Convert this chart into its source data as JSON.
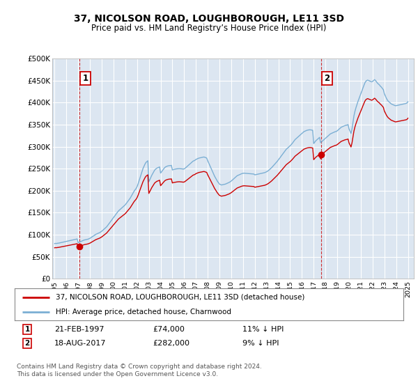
{
  "title": "37, NICOLSON ROAD, LOUGHBOROUGH, LE11 3SD",
  "subtitle": "Price paid vs. HM Land Registry’s House Price Index (HPI)",
  "ylabel_ticks": [
    "£0",
    "£50K",
    "£100K",
    "£150K",
    "£200K",
    "£250K",
    "£300K",
    "£350K",
    "£400K",
    "£450K",
    "£500K"
  ],
  "ylim": [
    0,
    500000
  ],
  "xlim_start": 1994.8,
  "xlim_end": 2025.5,
  "sale1_year": 1997.13,
  "sale1_price": 74000,
  "sale2_year": 2017.63,
  "sale2_price": 282000,
  "sale1_date": "21-FEB-1997",
  "sale1_amount": "£74,000",
  "sale1_hpi": "11% ↓ HPI",
  "sale2_date": "18-AUG-2017",
  "sale2_amount": "£282,000",
  "sale2_hpi": "9% ↓ HPI",
  "legend1": "37, NICOLSON ROAD, LOUGHBOROUGH, LE11 3SD (detached house)",
  "legend2": "HPI: Average price, detached house, Charnwood",
  "footer1": "Contains HM Land Registry data © Crown copyright and database right 2024.",
  "footer2": "This data is licensed under the Open Government Licence v3.0.",
  "bg_color": "#dce6f1",
  "red_color": "#cc0000",
  "blue_color": "#7bafd4",
  "grid_color": "#ffffff",
  "hpi_x": [
    1995.0,
    1995.083,
    1995.167,
    1995.25,
    1995.333,
    1995.417,
    1995.5,
    1995.583,
    1995.667,
    1995.75,
    1995.833,
    1995.917,
    1996.0,
    1996.083,
    1996.167,
    1996.25,
    1996.333,
    1996.417,
    1996.5,
    1996.583,
    1996.667,
    1996.75,
    1996.833,
    1996.917,
    1997.0,
    1997.083,
    1997.167,
    1997.25,
    1997.333,
    1997.417,
    1997.5,
    1997.583,
    1997.667,
    1997.75,
    1997.833,
    1997.917,
    1998.0,
    1998.083,
    1998.167,
    1998.25,
    1998.333,
    1998.417,
    1998.5,
    1998.583,
    1998.667,
    1998.75,
    1998.833,
    1998.917,
    1999.0,
    1999.083,
    1999.167,
    1999.25,
    1999.333,
    1999.417,
    1999.5,
    1999.583,
    1999.667,
    1999.75,
    1999.833,
    1999.917,
    2000.0,
    2000.083,
    2000.167,
    2000.25,
    2000.333,
    2000.417,
    2000.5,
    2000.583,
    2000.667,
    2000.75,
    2000.833,
    2000.917,
    2001.0,
    2001.083,
    2001.167,
    2001.25,
    2001.333,
    2001.417,
    2001.5,
    2001.583,
    2001.667,
    2001.75,
    2001.833,
    2001.917,
    2002.0,
    2002.083,
    2002.167,
    2002.25,
    2002.333,
    2002.417,
    2002.5,
    2002.583,
    2002.667,
    2002.75,
    2002.833,
    2002.917,
    2003.0,
    2003.083,
    2003.167,
    2003.25,
    2003.333,
    2003.417,
    2003.5,
    2003.583,
    2003.667,
    2003.75,
    2003.833,
    2003.917,
    2004.0,
    2004.083,
    2004.167,
    2004.25,
    2004.333,
    2004.417,
    2004.5,
    2004.583,
    2004.667,
    2004.75,
    2004.833,
    2004.917,
    2005.0,
    2005.083,
    2005.167,
    2005.25,
    2005.333,
    2005.417,
    2005.5,
    2005.583,
    2005.667,
    2005.75,
    2005.833,
    2005.917,
    2006.0,
    2006.083,
    2006.167,
    2006.25,
    2006.333,
    2006.417,
    2006.5,
    2006.583,
    2006.667,
    2006.75,
    2006.833,
    2006.917,
    2007.0,
    2007.083,
    2007.167,
    2007.25,
    2007.333,
    2007.417,
    2007.5,
    2007.583,
    2007.667,
    2007.75,
    2007.833,
    2007.917,
    2008.0,
    2008.083,
    2008.167,
    2008.25,
    2008.333,
    2008.417,
    2008.5,
    2008.583,
    2008.667,
    2008.75,
    2008.833,
    2008.917,
    2009.0,
    2009.083,
    2009.167,
    2009.25,
    2009.333,
    2009.417,
    2009.5,
    2009.583,
    2009.667,
    2009.75,
    2009.833,
    2009.917,
    2010.0,
    2010.083,
    2010.167,
    2010.25,
    2010.333,
    2010.417,
    2010.5,
    2010.583,
    2010.667,
    2010.75,
    2010.833,
    2010.917,
    2011.0,
    2011.083,
    2011.167,
    2011.25,
    2011.333,
    2011.417,
    2011.5,
    2011.583,
    2011.667,
    2011.75,
    2011.833,
    2011.917,
    2012.0,
    2012.083,
    2012.167,
    2012.25,
    2012.333,
    2012.417,
    2012.5,
    2012.583,
    2012.667,
    2012.75,
    2012.833,
    2012.917,
    2013.0,
    2013.083,
    2013.167,
    2013.25,
    2013.333,
    2013.417,
    2013.5,
    2013.583,
    2013.667,
    2013.75,
    2013.833,
    2013.917,
    2014.0,
    2014.083,
    2014.167,
    2014.25,
    2014.333,
    2014.417,
    2014.5,
    2014.583,
    2014.667,
    2014.75,
    2014.833,
    2014.917,
    2015.0,
    2015.083,
    2015.167,
    2015.25,
    2015.333,
    2015.417,
    2015.5,
    2015.583,
    2015.667,
    2015.75,
    2015.833,
    2015.917,
    2016.0,
    2016.083,
    2016.167,
    2016.25,
    2016.333,
    2016.417,
    2016.5,
    2016.583,
    2016.667,
    2016.75,
    2016.833,
    2016.917,
    2017.0,
    2017.083,
    2017.167,
    2017.25,
    2017.333,
    2017.417,
    2017.5,
    2017.583,
    2017.667,
    2017.75,
    2017.833,
    2017.917,
    2018.0,
    2018.083,
    2018.167,
    2018.25,
    2018.333,
    2018.417,
    2018.5,
    2018.583,
    2018.667,
    2018.75,
    2018.833,
    2018.917,
    2019.0,
    2019.083,
    2019.167,
    2019.25,
    2019.333,
    2019.417,
    2019.5,
    2019.583,
    2019.667,
    2019.75,
    2019.833,
    2019.917,
    2020.0,
    2020.083,
    2020.167,
    2020.25,
    2020.333,
    2020.417,
    2020.5,
    2020.583,
    2020.667,
    2020.75,
    2020.833,
    2020.917,
    2021.0,
    2021.083,
    2021.167,
    2021.25,
    2021.333,
    2021.417,
    2021.5,
    2021.583,
    2021.667,
    2021.75,
    2021.833,
    2021.917,
    2022.0,
    2022.083,
    2022.167,
    2022.25,
    2022.333,
    2022.417,
    2022.5,
    2022.583,
    2022.667,
    2022.75,
    2022.833,
    2022.917,
    2023.0,
    2023.083,
    2023.167,
    2023.25,
    2023.333,
    2023.417,
    2023.5,
    2023.583,
    2023.667,
    2023.75,
    2023.833,
    2023.917,
    2024.0,
    2024.083,
    2024.167,
    2024.25,
    2024.333,
    2024.417,
    2024.5,
    2024.583,
    2024.667,
    2024.75,
    2024.833,
    2024.917,
    2025.0
  ],
  "hpi_y": [
    80000,
    80500,
    80200,
    80800,
    81000,
    81500,
    82000,
    82500,
    83000,
    83500,
    84000,
    84500,
    85000,
    85500,
    86000,
    86500,
    87000,
    87500,
    88000,
    88500,
    89000,
    89500,
    90000,
    90500,
    82000,
    83000,
    84000,
    85000,
    86000,
    87000,
    88000,
    88500,
    89000,
    89500,
    90000,
    91000,
    92000,
    93500,
    95000,
    96500,
    98000,
    99500,
    101000,
    102000,
    103000,
    104000,
    105000,
    106500,
    108000,
    110000,
    112000,
    114000,
    116000,
    118000,
    121000,
    124000,
    127000,
    130000,
    133000,
    136000,
    139000,
    142000,
    145000,
    148000,
    151000,
    154000,
    156000,
    158000,
    160000,
    162000,
    164000,
    166000,
    168000,
    171000,
    174000,
    177000,
    180000,
    183000,
    187000,
    191000,
    195000,
    199000,
    202000,
    205000,
    209000,
    215000,
    222000,
    229000,
    236000,
    243000,
    250000,
    255000,
    260000,
    264000,
    266000,
    268000,
    220000,
    225000,
    230000,
    235000,
    239000,
    243000,
    247000,
    249000,
    251000,
    252000,
    253000,
    254000,
    240000,
    243000,
    246000,
    249000,
    252000,
    254000,
    255000,
    256000,
    256500,
    257000,
    257000,
    257500,
    247000,
    248000,
    248500,
    249000,
    249500,
    249800,
    250000,
    250200,
    250000,
    249800,
    249500,
    249000,
    249500,
    251000,
    253000,
    255000,
    257000,
    259000,
    261000,
    263000,
    265000,
    267000,
    268000,
    269000,
    271000,
    272000,
    273000,
    274000,
    274500,
    275000,
    275500,
    276000,
    276500,
    276000,
    275000,
    274000,
    268000,
    263000,
    258000,
    253000,
    248000,
    243000,
    238000,
    233000,
    229000,
    225000,
    221000,
    218000,
    215000,
    214000,
    213000,
    213500,
    214000,
    214500,
    215000,
    216000,
    217000,
    218000,
    219000,
    220500,
    222000,
    224000,
    226000,
    228000,
    230000,
    232000,
    234000,
    235000,
    236000,
    237000,
    238000,
    239000,
    239500,
    239800,
    239600,
    239400,
    239200,
    239000,
    238800,
    238600,
    238400,
    238200,
    238000,
    237800,
    236000,
    236500,
    237000,
    237500,
    238000,
    238500,
    239000,
    239500,
    240000,
    240500,
    241000,
    242000,
    243000,
    244500,
    246000,
    248000,
    250000,
    252000,
    254500,
    257000,
    259500,
    262000,
    264500,
    267000,
    270000,
    273000,
    276000,
    279000,
    282000,
    285000,
    288000,
    291000,
    294000,
    296000,
    298000,
    300000,
    302000,
    304500,
    307000,
    310000,
    313000,
    316000,
    318000,
    320000,
    322000,
    324000,
    326000,
    328000,
    330000,
    332000,
    334000,
    335000,
    336000,
    337000,
    337500,
    338000,
    338200,
    338000,
    337500,
    337000,
    307000,
    310000,
    313000,
    315000,
    317000,
    319000,
    321000,
    309000,
    311000,
    313000,
    315000,
    317000,
    319000,
    321000,
    323000,
    325000,
    327000,
    329000,
    330000,
    331000,
    332000,
    333000,
    334000,
    334500,
    336000,
    338000,
    340000,
    342000,
    344000,
    345000,
    346000,
    347000,
    348000,
    348500,
    349000,
    350000,
    340000,
    335000,
    330000,
    340000,
    355000,
    370000,
    380000,
    388000,
    395000,
    402000,
    408000,
    414000,
    420000,
    426000,
    432000,
    438000,
    444000,
    448000,
    450000,
    451000,
    450000,
    449000,
    448000,
    447000,
    448000,
    450000,
    452000,
    450000,
    447000,
    444000,
    442000,
    440000,
    437000,
    435000,
    432000,
    429000,
    420000,
    415000,
    410000,
    406000,
    403000,
    401000,
    399000,
    397000,
    396000,
    395000,
    394000,
    393000,
    393000,
    393500,
    394000,
    394500,
    395000,
    395500,
    396000,
    396500,
    397000,
    397500,
    398000,
    399000,
    402000
  ]
}
